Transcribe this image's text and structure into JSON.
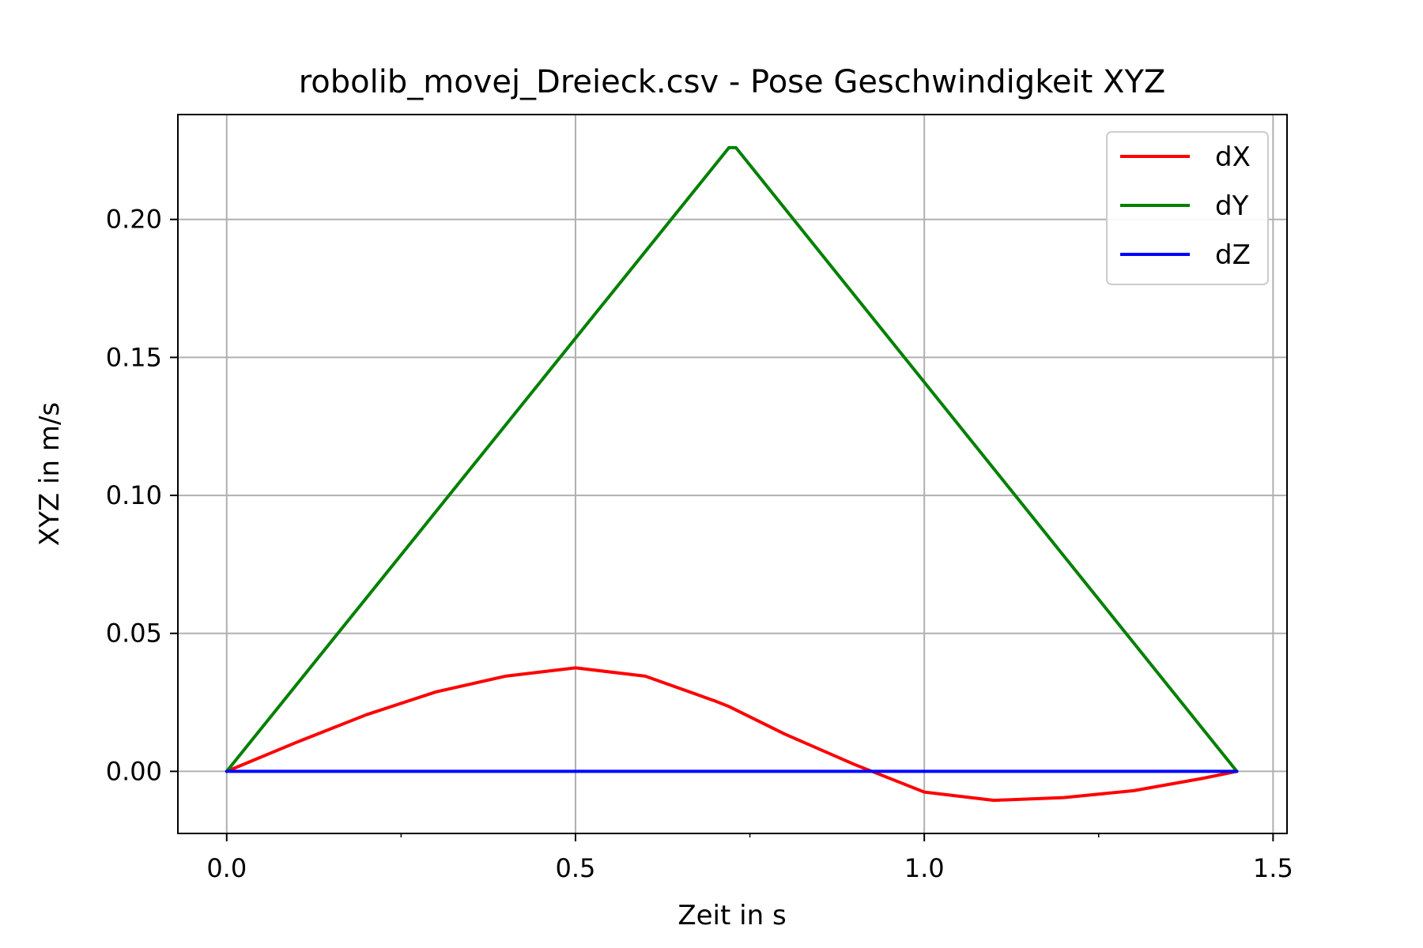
{
  "chart_data": {
    "type": "line",
    "title": "robolib_movej_Dreieck.csv - Pose Geschwindigkeit XYZ",
    "xlabel": "Zeit in s",
    "ylabel": "XYZ in m/s",
    "xlim": [
      -0.07,
      1.52
    ],
    "ylim": [
      -0.0225,
      0.238
    ],
    "xticks": [
      0.0,
      0.5,
      1.0,
      1.5
    ],
    "xtick_labels": [
      "0.0",
      "0.5",
      "1.0",
      "1.5"
    ],
    "xticks_minor": [
      0.25,
      0.75,
      1.25
    ],
    "yticks": [
      0.0,
      0.05,
      0.1,
      0.15,
      0.2
    ],
    "ytick_labels": [
      "0.00",
      "0.05",
      "0.10",
      "0.15",
      "0.20"
    ],
    "grid": true,
    "legend_position": "top-right",
    "series": [
      {
        "name": "dX",
        "color": "#ff0000",
        "x": [
          0.0,
          0.1,
          0.2,
          0.3,
          0.4,
          0.5,
          0.6,
          0.7,
          0.72,
          0.8,
          0.9,
          1.0,
          1.1,
          1.2,
          1.3,
          1.4,
          1.448
        ],
        "y": [
          0.0,
          0.0105,
          0.0205,
          0.0288,
          0.0345,
          0.0375,
          0.0345,
          0.0255,
          0.0235,
          0.0135,
          0.0025,
          -0.0075,
          -0.0105,
          -0.0095,
          -0.007,
          -0.0025,
          0.0
        ]
      },
      {
        "name": "dY",
        "color": "#008000",
        "x": [
          0.0,
          0.72,
          0.73,
          1.448
        ],
        "y": [
          0.0,
          0.226,
          0.226,
          0.0
        ]
      },
      {
        "name": "dZ",
        "color": "#0000ff",
        "x": [
          0.0,
          1.448
        ],
        "y": [
          0.0,
          0.0
        ]
      }
    ]
  }
}
